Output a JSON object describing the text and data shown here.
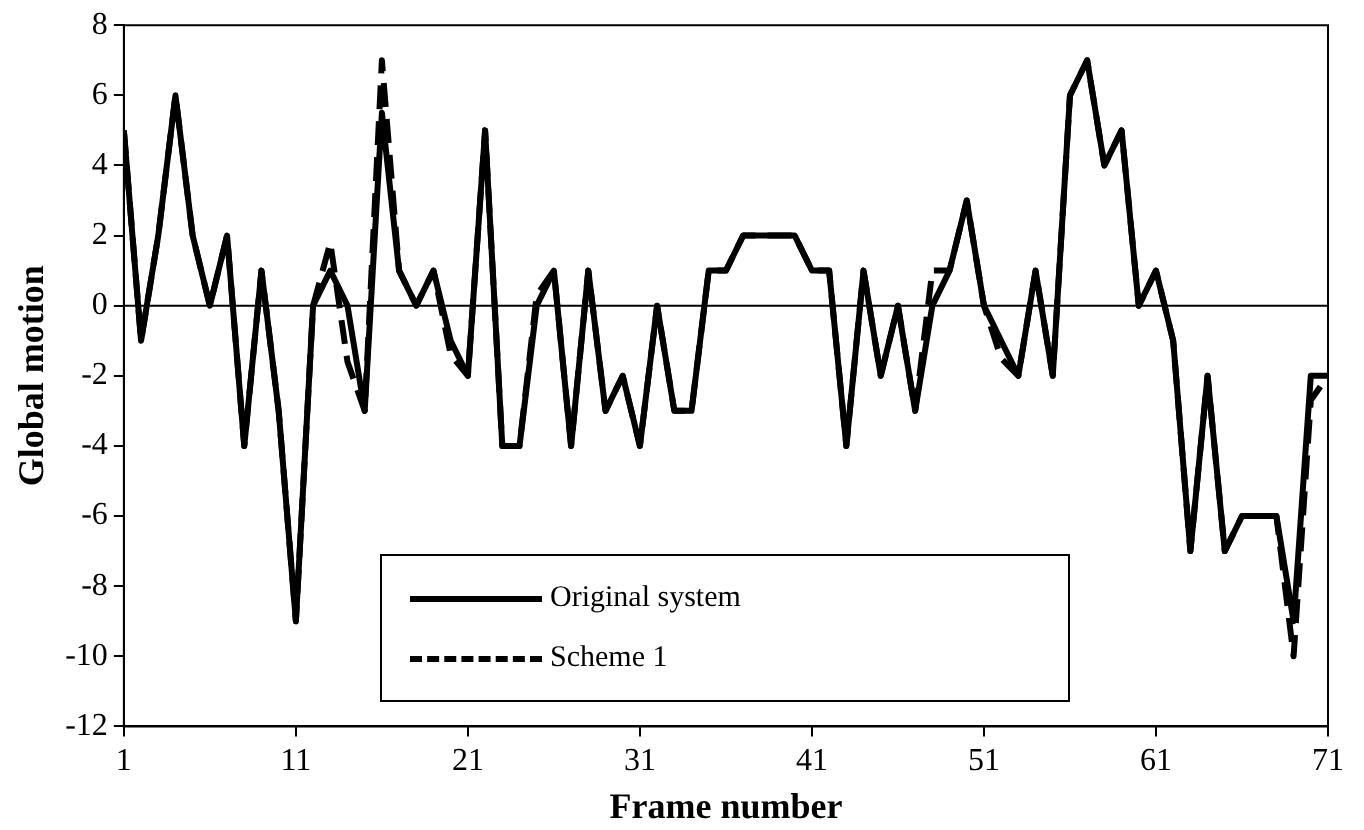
{
  "chart_data": {
    "type": "line",
    "xlabel": "Frame number",
    "ylabel": "Global motion",
    "x": [
      1,
      2,
      3,
      4,
      5,
      6,
      7,
      8,
      9,
      10,
      11,
      12,
      13,
      14,
      15,
      16,
      17,
      18,
      19,
      20,
      21,
      22,
      23,
      24,
      25,
      26,
      27,
      28,
      29,
      30,
      31,
      32,
      33,
      34,
      35,
      36,
      37,
      38,
      39,
      40,
      41,
      42,
      43,
      44,
      45,
      46,
      47,
      48,
      49,
      50,
      51,
      52,
      53,
      54,
      55,
      56,
      57,
      58,
      59,
      60,
      61,
      62,
      63,
      64,
      65,
      66,
      67,
      68,
      69,
      70,
      71
    ],
    "series": [
      {
        "name": "Original system",
        "color": "#000000",
        "line_style": "solid",
        "values": [
          5,
          -1,
          2,
          6,
          2,
          0,
          2,
          -4,
          1,
          -3,
          -9,
          0,
          1,
          0,
          -3,
          5.5,
          1,
          0,
          1,
          -1,
          -2,
          5,
          -4,
          -4,
          0,
          1,
          -4,
          1,
          -3,
          -2,
          -4,
          0,
          -3,
          -3,
          1,
          1,
          2,
          2,
          2,
          2,
          1,
          1,
          -4,
          1,
          -2,
          0,
          -3,
          0,
          1,
          3,
          0,
          -1,
          -2,
          1,
          -2,
          6,
          7,
          4,
          5,
          0,
          1,
          -1,
          -7,
          -2,
          -7,
          -6,
          -6,
          -6,
          -9,
          -2,
          -2
        ]
      },
      {
        "name": "Scheme 1",
        "color": "#000000",
        "line_style": "dashed",
        "values": [
          5,
          -1,
          2,
          6,
          2,
          0,
          2,
          -4,
          1,
          -3,
          -9,
          0,
          1.8,
          -1.6,
          -3,
          7,
          1,
          0,
          1,
          -1.4,
          -2,
          5,
          -4,
          -4,
          0.3,
          1,
          -4,
          1,
          -3,
          -2,
          -4,
          0,
          -3,
          -3,
          1,
          1,
          2,
          2,
          2,
          2,
          1,
          1,
          -4,
          1,
          -2,
          0,
          -3,
          1,
          1,
          3,
          0,
          -1.5,
          -2,
          1,
          -2,
          6,
          7,
          4,
          5,
          0,
          1,
          -1,
          -7,
          -2,
          -7,
          -6,
          -6,
          -6,
          -10,
          -2.7,
          -2
        ]
      }
    ],
    "xlim": [
      1,
      71
    ],
    "xticks": [
      1,
      11,
      21,
      31,
      41,
      51,
      61,
      71
    ],
    "ylim": [
      -12,
      8
    ],
    "yticks": [
      -12,
      -10,
      -8,
      -6,
      -4,
      -2,
      0,
      2,
      4,
      6,
      8
    ],
    "ref_lines": [
      {
        "axis": "y",
        "value": 0,
        "color": "#000000"
      }
    ],
    "grid": false,
    "legend": "bottom",
    "marker": "none"
  }
}
